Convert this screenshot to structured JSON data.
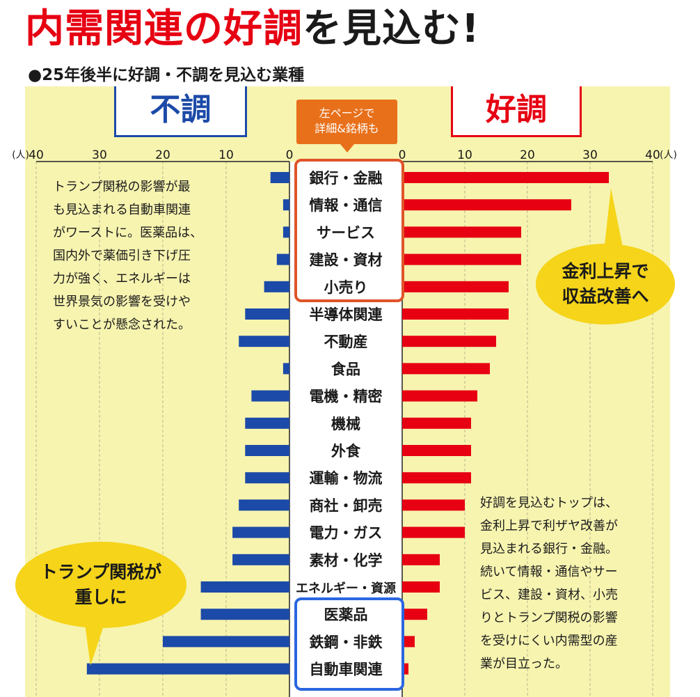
{
  "title": {
    "part1": "内需関連の好調",
    "part2": "を見込む!"
  },
  "subtitle": "●25年後半に好調・不調を見込む業種",
  "panel_labels": {
    "bad": "不調",
    "good": "好調"
  },
  "detail_tag": {
    "line1": "左ページで",
    "line2": "詳細&銘柄も"
  },
  "note_left": [
    "トランプ関税の影響が最",
    "も見込まれる自動車関連",
    "がワーストに。医薬品は、",
    "国内外で薬価引き下げ圧",
    "力が強く、エネルギーは",
    "世界景気の影響を受けや",
    "すいことが懸念された。"
  ],
  "note_right": [
    "好調を見込むトップは、",
    "金利上昇で利ザヤ改善が",
    "見込まれる銀行・金融。",
    "続いて情報・通信やサー",
    "ビス、建設・資材、小売",
    "りとトランプ関税の影響",
    "を受けにくい内需型の産",
    "業が目立った。"
  ],
  "bubble_right": [
    "金利上昇で",
    "収益改善へ"
  ],
  "bubble_left": [
    "トランプ関税が",
    "重しに"
  ],
  "colors": {
    "bad": "#1c4aa8",
    "good": "#e60012",
    "panel": "#f7f4b0",
    "accent": "#e8701a",
    "bubble": "#f5d41a"
  },
  "chart_data": {
    "type": "bar",
    "orientation": "horizontal-diverging",
    "unit": "人",
    "left_axis": {
      "ticks": [
        "40",
        "30",
        "20",
        "10",
        "0"
      ],
      "unit_label": "(人)",
      "range": [
        40,
        0
      ]
    },
    "right_axis": {
      "ticks": [
        "0",
        "10",
        "20",
        "30",
        "40"
      ],
      "unit_label": "(人)",
      "range": [
        0,
        40
      ]
    },
    "grid": true,
    "categories": [
      "銀行・金融",
      "情報・通信",
      "サービス",
      "建設・資材",
      "小売り",
      "半導体関連",
      "不動産",
      "食品",
      "電機・精密",
      "機械",
      "外食",
      "運輸・物流",
      "商社・卸売",
      "電力・ガス",
      "素材・化学",
      "エネルギー・資源",
      "医薬品",
      "鉄鋼・非鉄",
      "自動車関連"
    ],
    "series": [
      {
        "name": "不調",
        "values": [
          3,
          1,
          1,
          2,
          4,
          7,
          8,
          1,
          6,
          7,
          7,
          7,
          8,
          9,
          9,
          14,
          14,
          20,
          32
        ]
      },
      {
        "name": "好調",
        "values": [
          33,
          27,
          19,
          19,
          17,
          17,
          15,
          14,
          12,
          11,
          11,
          11,
          10,
          10,
          6,
          6,
          4,
          2,
          1
        ]
      }
    ]
  }
}
